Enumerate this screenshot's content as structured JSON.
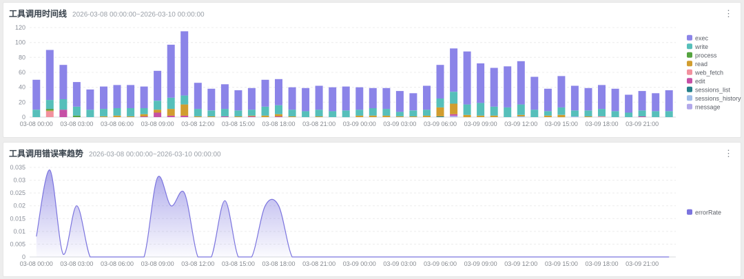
{
  "page_bg": "#ededed",
  "panels": [
    {
      "title": "工具调用时间线",
      "subtitle": "2026-03-08 00:00:00~2026-03-10 00:00:00",
      "menu_icon": "kebab-menu"
    },
    {
      "title": "工具调用错误率趋势",
      "subtitle": "2026-03-08 00:00:00~2026-03-10 00:00:00",
      "menu_icon": "kebab-menu"
    }
  ],
  "chart_data": [
    {
      "type": "bar",
      "stacked": true,
      "title": "工具调用时间线",
      "subtitle": "2026-03-08 00:00:00~2026-03-10 00:00:00",
      "xlabel": "",
      "ylabel": "",
      "ylim": [
        0,
        120
      ],
      "y_ticks": [
        0,
        20,
        40,
        60,
        80,
        100,
        120
      ],
      "x_tick_every": 3,
      "grid": true,
      "legend_position": "right",
      "x": [
        "03-08 00:00",
        "03-08 01:00",
        "03-08 02:00",
        "03-08 03:00",
        "03-08 04:00",
        "03-08 05:00",
        "03-08 06:00",
        "03-08 07:00",
        "03-08 08:00",
        "03-08 09:00",
        "03-08 10:00",
        "03-08 11:00",
        "03-08 12:00",
        "03-08 13:00",
        "03-08 14:00",
        "03-08 15:00",
        "03-08 16:00",
        "03-08 17:00",
        "03-08 18:00",
        "03-08 19:00",
        "03-08 20:00",
        "03-08 21:00",
        "03-08 22:00",
        "03-08 23:00",
        "03-09 00:00",
        "03-09 01:00",
        "03-09 02:00",
        "03-09 03:00",
        "03-09 04:00",
        "03-09 05:00",
        "03-09 06:00",
        "03-09 07:00",
        "03-09 08:00",
        "03-09 09:00",
        "03-09 10:00",
        "03-09 11:00",
        "03-09 12:00",
        "03-09 13:00",
        "03-09 14:00",
        "03-09 15:00",
        "03-09 16:00",
        "03-09 17:00",
        "03-09 18:00",
        "03-09 19:00",
        "03-09 20:00",
        "03-09 21:00",
        "03-09 22:00",
        "03-09 23:00"
      ],
      "series": [
        {
          "name": "exec",
          "color": "#8b84e8",
          "values": [
            40,
            67,
            46,
            33,
            27,
            30,
            31,
            31,
            29,
            40,
            71,
            86,
            35,
            29,
            33,
            27,
            29,
            36,
            35,
            30,
            31,
            32,
            32,
            32,
            30,
            27,
            28,
            28,
            23,
            32,
            45,
            58,
            71,
            53,
            52,
            55,
            58,
            44,
            30,
            42,
            33,
            30,
            32,
            30,
            24,
            26,
            24,
            28
          ]
        },
        {
          "name": "write",
          "color": "#56bfba",
          "values": [
            10,
            12,
            14,
            12,
            10,
            10,
            10,
            11,
            8,
            12,
            15,
            12,
            10,
            8,
            10,
            8,
            8,
            12,
            12,
            9,
            8,
            9,
            8,
            9,
            8,
            10,
            9,
            6,
            8,
            8,
            12,
            16,
            14,
            17,
            12,
            13,
            14,
            10,
            6,
            10,
            8,
            8,
            10,
            8,
            6,
            8,
            8,
            8
          ]
        },
        {
          "name": "process",
          "color": "#55a33f",
          "values": [
            0,
            2,
            0,
            2,
            0,
            0,
            0,
            0,
            0,
            0,
            0,
            0,
            0,
            0,
            0,
            0,
            0,
            0,
            0,
            0,
            0,
            0,
            0,
            0,
            0,
            0,
            0,
            0,
            0,
            0,
            0,
            0,
            0,
            0,
            0,
            0,
            0,
            0,
            0,
            0,
            0,
            0,
            0,
            0,
            0,
            0,
            0,
            0
          ]
        },
        {
          "name": "read",
          "color": "#d19d2f",
          "values": [
            0,
            1,
            0,
            0,
            0,
            1,
            2,
            1,
            3,
            4,
            9,
            15,
            1,
            1,
            0,
            1,
            1,
            2,
            3,
            1,
            0,
            1,
            0,
            0,
            2,
            2,
            2,
            1,
            1,
            2,
            12,
            14,
            3,
            2,
            2,
            0,
            2,
            0,
            2,
            3,
            0,
            1,
            0,
            0,
            0,
            0,
            0,
            0
          ]
        },
        {
          "name": "web_fetch",
          "color": "#f2919e",
          "values": [
            0,
            8,
            0,
            0,
            0,
            0,
            0,
            0,
            0,
            0,
            0,
            0,
            0,
            0,
            0,
            0,
            0,
            0,
            0,
            0,
            0,
            0,
            0,
            0,
            0,
            0,
            0,
            0,
            0,
            0,
            0,
            0,
            0,
            0,
            0,
            0,
            0,
            0,
            0,
            0,
            0,
            0,
            1,
            0,
            0,
            0,
            0,
            0
          ]
        },
        {
          "name": "edit",
          "color": "#c650a5",
          "values": [
            0,
            0,
            10,
            0,
            0,
            0,
            0,
            0,
            1,
            6,
            2,
            2,
            0,
            0,
            1,
            0,
            1,
            0,
            1,
            0,
            0,
            0,
            0,
            0,
            0,
            0,
            0,
            0,
            0,
            0,
            0,
            2,
            0,
            0,
            0,
            0,
            0,
            0,
            0,
            0,
            0,
            0,
            0,
            0,
            0,
            1,
            0,
            0
          ]
        },
        {
          "name": "sessions_list",
          "color": "#25808a",
          "values": [
            0,
            0,
            0,
            0,
            0,
            0,
            0,
            0,
            0,
            0,
            0,
            0,
            0,
            0,
            0,
            0,
            0,
            0,
            0,
            0,
            0,
            0,
            0,
            0,
            0,
            0,
            0,
            0,
            0,
            0,
            1,
            0,
            0,
            0,
            0,
            0,
            0,
            0,
            0,
            0,
            0,
            0,
            0,
            0,
            0,
            0,
            0,
            0
          ]
        },
        {
          "name": "sessions_history",
          "color": "#9fbce9",
          "values": [
            0,
            0,
            0,
            0,
            0,
            0,
            0,
            0,
            0,
            0,
            0,
            0,
            0,
            0,
            0,
            0,
            0,
            0,
            0,
            0,
            0,
            0,
            0,
            0,
            0,
            0,
            0,
            0,
            0,
            0,
            0,
            0,
            0,
            0,
            0,
            0,
            1,
            0,
            0,
            0,
            1,
            0,
            0,
            0,
            0,
            0,
            0,
            0
          ]
        },
        {
          "name": "message",
          "color": "#b2a8ea",
          "values": [
            0,
            0,
            0,
            0,
            0,
            0,
            0,
            0,
            0,
            0,
            0,
            0,
            0,
            0,
            0,
            0,
            0,
            0,
            0,
            0,
            0,
            0,
            0,
            0,
            0,
            0,
            0,
            0,
            0,
            0,
            0,
            2,
            0,
            0,
            0,
            0,
            0,
            0,
            0,
            0,
            0,
            0,
            0,
            0,
            0,
            0,
            0,
            0
          ]
        }
      ]
    },
    {
      "type": "area",
      "smooth": true,
      "title": "工具调用错误率趋势",
      "subtitle": "2026-03-08 00:00:00~2026-03-10 00:00:00",
      "xlabel": "",
      "ylabel": "",
      "ylim": [
        0,
        0.035
      ],
      "y_ticks": [
        0,
        0.005,
        0.01,
        0.015,
        0.02,
        0.025,
        0.03,
        0.035
      ],
      "x_tick_every": 3,
      "grid": true,
      "legend_position": "right",
      "x": [
        "03-08 00:00",
        "03-08 01:00",
        "03-08 02:00",
        "03-08 03:00",
        "03-08 04:00",
        "03-08 05:00",
        "03-08 06:00",
        "03-08 07:00",
        "03-08 08:00",
        "03-08 09:00",
        "03-08 10:00",
        "03-08 11:00",
        "03-08 12:00",
        "03-08 13:00",
        "03-08 14:00",
        "03-08 15:00",
        "03-08 16:00",
        "03-08 17:00",
        "03-08 18:00",
        "03-08 19:00",
        "03-08 20:00",
        "03-08 21:00",
        "03-08 22:00",
        "03-08 23:00",
        "03-09 00:00",
        "03-09 01:00",
        "03-09 02:00",
        "03-09 03:00",
        "03-09 04:00",
        "03-09 05:00",
        "03-09 06:00",
        "03-09 07:00",
        "03-09 08:00",
        "03-09 09:00",
        "03-09 10:00",
        "03-09 11:00",
        "03-09 12:00",
        "03-09 13:00",
        "03-09 14:00",
        "03-09 15:00",
        "03-09 16:00",
        "03-09 17:00",
        "03-09 18:00",
        "03-09 19:00",
        "03-09 20:00",
        "03-09 21:00",
        "03-09 22:00",
        "03-09 23:00"
      ],
      "series": [
        {
          "name": "errorRate",
          "color": "#7b74de",
          "values": [
            0.008,
            0.034,
            0.001,
            0.02,
            0,
            0,
            0,
            0,
            0,
            0.031,
            0.02,
            0.025,
            0,
            0,
            0.022,
            0,
            0,
            0.02,
            0.02,
            0,
            0,
            0,
            0,
            0,
            0,
            0,
            0,
            0,
            0,
            0,
            0,
            0,
            0,
            0,
            0,
            0,
            0,
            0,
            0,
            0,
            0,
            0,
            0,
            0,
            0,
            0,
            0,
            0
          ]
        }
      ]
    }
  ]
}
